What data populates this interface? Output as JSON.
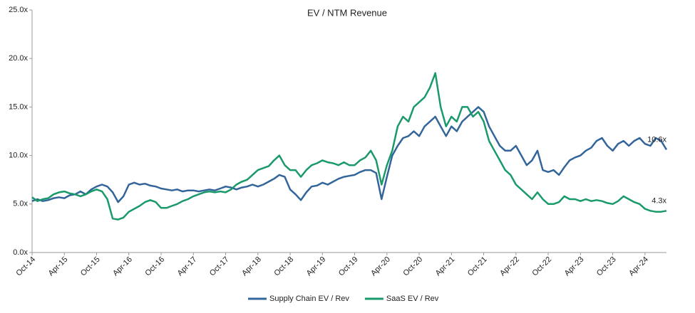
{
  "chart_data": {
    "type": "line",
    "title": "EV / NTM Revenue",
    "categories": [
      "Oct-14",
      null,
      null,
      null,
      null,
      null,
      "Apr-15",
      null,
      null,
      null,
      null,
      null,
      "Oct-15",
      null,
      null,
      null,
      null,
      null,
      "Apr-16",
      null,
      null,
      null,
      null,
      null,
      "Oct-16",
      null,
      null,
      null,
      null,
      null,
      "Apr-17",
      null,
      null,
      null,
      null,
      null,
      "Oct-17",
      null,
      null,
      null,
      null,
      null,
      "Apr-18",
      null,
      null,
      null,
      null,
      null,
      "Oct-18",
      null,
      null,
      null,
      null,
      null,
      "Apr-19",
      null,
      null,
      null,
      null,
      null,
      "Oct-19",
      null,
      null,
      null,
      null,
      null,
      "Apr-20",
      null,
      null,
      null,
      null,
      null,
      "Oct-20",
      null,
      null,
      null,
      null,
      null,
      "Apr-21",
      null,
      null,
      null,
      null,
      null,
      "Oct-21",
      null,
      null,
      null,
      null,
      null,
      "Apr-22",
      null,
      null,
      null,
      null,
      null,
      "Oct-22",
      null,
      null,
      null,
      null,
      null,
      "Apr-23",
      null,
      null,
      null,
      null,
      null,
      "Oct-23",
      null,
      null,
      null,
      null,
      null,
      "Apr-24",
      null,
      null,
      null,
      null
    ],
    "series": [
      {
        "name": "Supply Chain EV / Rev",
        "color": "#33659b",
        "values": [
          5.3,
          5.5,
          5.3,
          5.4,
          5.6,
          5.7,
          5.6,
          5.9,
          6.0,
          6.3,
          6.0,
          6.5,
          6.8,
          7.0,
          6.8,
          6.2,
          5.2,
          5.8,
          7.0,
          7.2,
          7.0,
          7.1,
          6.9,
          6.8,
          6.6,
          6.5,
          6.4,
          6.5,
          6.3,
          6.4,
          6.4,
          6.3,
          6.4,
          6.5,
          6.4,
          6.6,
          6.8,
          6.7,
          6.5,
          6.7,
          6.8,
          7.0,
          6.8,
          7.0,
          7.3,
          7.6,
          8.0,
          7.8,
          6.5,
          6.0,
          5.4,
          6.2,
          6.8,
          6.9,
          7.2,
          7.0,
          7.3,
          7.6,
          7.8,
          7.9,
          8.0,
          8.3,
          8.5,
          8.5,
          8.2,
          5.5,
          7.8,
          10.0,
          11.0,
          11.8,
          12.0,
          12.5,
          12.0,
          13.0,
          13.5,
          14.0,
          13.0,
          12.0,
          13.0,
          12.5,
          13.5,
          14.0,
          14.5,
          15.0,
          14.5,
          13.0,
          12.0,
          11.0,
          10.5,
          10.5,
          11.0,
          10.0,
          9.0,
          9.5,
          10.5,
          8.5,
          8.3,
          8.5,
          8.0,
          8.8,
          9.5,
          9.8,
          10.0,
          10.5,
          10.8,
          11.5,
          11.8,
          11.0,
          10.5,
          11.2,
          11.5,
          11.0,
          11.5,
          11.8,
          11.2,
          11.0,
          11.8,
          11.5,
          10.6
        ],
        "value_labels": [
          null,
          null,
          null,
          null,
          null,
          null,
          null,
          null,
          null,
          null,
          null,
          null,
          null,
          null,
          null,
          null,
          null,
          null,
          null,
          null,
          null,
          null,
          null,
          null,
          null,
          null,
          null,
          null,
          null,
          null,
          null,
          null,
          null,
          null,
          null,
          null,
          null,
          null,
          null,
          null,
          null,
          null,
          null,
          null,
          null,
          null,
          null,
          null,
          null,
          null,
          null,
          null,
          null,
          null,
          null,
          null,
          null,
          null,
          null,
          null,
          null,
          null,
          null,
          null,
          null,
          null,
          null,
          null,
          null,
          null,
          null,
          null,
          null,
          null,
          null,
          null,
          null,
          null,
          null,
          null,
          null,
          null,
          null,
          null,
          null,
          null,
          null,
          null,
          null,
          null,
          null,
          null,
          null,
          null,
          null,
          null,
          null,
          null,
          null,
          null,
          null,
          null,
          null,
          null,
          null,
          null,
          null,
          null,
          null,
          null,
          null,
          null,
          null,
          null,
          null,
          null,
          null,
          null,
          "10.6x"
        ]
      },
      {
        "name": "SaaS EV / Rev",
        "color": "#1a9a6a",
        "values": [
          5.7,
          5.3,
          5.5,
          5.6,
          6.0,
          6.2,
          6.3,
          6.1,
          6.0,
          5.8,
          6.0,
          6.3,
          6.5,
          6.3,
          5.5,
          3.5,
          3.4,
          3.6,
          4.2,
          4.5,
          4.8,
          5.2,
          5.4,
          5.2,
          4.6,
          4.6,
          4.8,
          5.0,
          5.3,
          5.5,
          5.8,
          6.0,
          6.2,
          6.3,
          6.2,
          6.3,
          6.2,
          6.5,
          7.0,
          7.3,
          7.5,
          8.0,
          8.5,
          8.7,
          8.9,
          9.5,
          10.0,
          9.0,
          8.5,
          8.5,
          7.8,
          8.5,
          9.0,
          9.2,
          9.5,
          9.3,
          9.2,
          9.0,
          9.3,
          9.0,
          9.0,
          9.5,
          9.8,
          10.5,
          9.5,
          7.0,
          9.0,
          10.5,
          13.0,
          14.0,
          13.5,
          15.0,
          15.5,
          16.0,
          17.0,
          18.5,
          15.0,
          13.0,
          14.0,
          13.5,
          15.0,
          15.0,
          14.0,
          14.5,
          13.5,
          11.5,
          10.5,
          9.5,
          8.5,
          8.0,
          7.0,
          6.5,
          6.0,
          5.5,
          6.2,
          5.5,
          5.0,
          5.0,
          5.2,
          5.8,
          5.5,
          5.5,
          5.3,
          5.5,
          5.3,
          5.4,
          5.3,
          5.1,
          5.0,
          5.3,
          5.8,
          5.5,
          5.2,
          5.0,
          4.5,
          4.3,
          4.2,
          4.2,
          4.3
        ],
        "value_labels": [
          null,
          null,
          null,
          null,
          null,
          null,
          null,
          null,
          null,
          null,
          null,
          null,
          null,
          null,
          null,
          null,
          null,
          null,
          null,
          null,
          null,
          null,
          null,
          null,
          null,
          null,
          null,
          null,
          null,
          null,
          null,
          null,
          null,
          null,
          null,
          null,
          null,
          null,
          null,
          null,
          null,
          null,
          null,
          null,
          null,
          null,
          null,
          null,
          null,
          null,
          null,
          null,
          null,
          null,
          null,
          null,
          null,
          null,
          null,
          null,
          null,
          null,
          null,
          null,
          null,
          null,
          null,
          null,
          null,
          null,
          null,
          null,
          null,
          null,
          null,
          null,
          null,
          null,
          null,
          null,
          null,
          null,
          null,
          null,
          null,
          null,
          null,
          null,
          null,
          null,
          null,
          null,
          null,
          null,
          null,
          null,
          null,
          null,
          null,
          null,
          null,
          null,
          null,
          null,
          null,
          null,
          null,
          null,
          null,
          null,
          null,
          null,
          null,
          null,
          null,
          null,
          null,
          null,
          "4.3x"
        ]
      }
    ],
    "ylim": [
      0,
      25
    ],
    "yticks": [
      {
        "value": 0,
        "label": "0.0x"
      },
      {
        "value": 5,
        "label": "5.0x"
      },
      {
        "value": 10,
        "label": "10.0x"
      },
      {
        "value": 15,
        "label": "15.0x"
      },
      {
        "value": 20,
        "label": "20.0x"
      },
      {
        "value": 25,
        "label": "25.0x"
      }
    ],
    "grid": false,
    "legend": "bottom"
  }
}
